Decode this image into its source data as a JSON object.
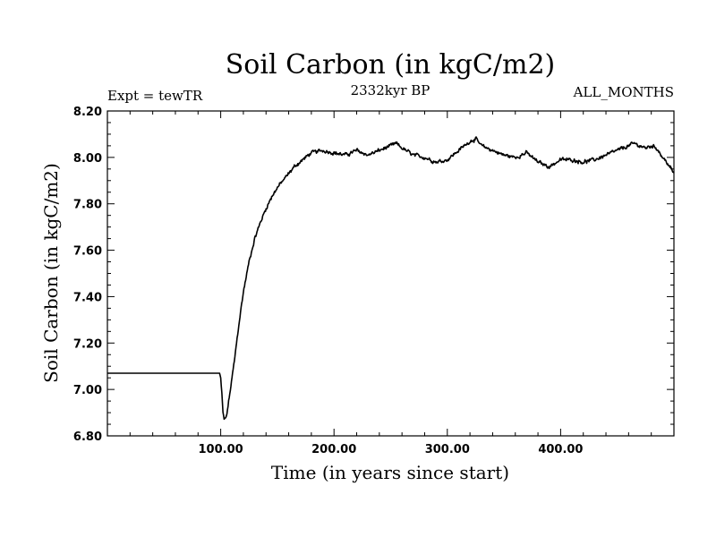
{
  "chart_data": {
    "type": "line",
    "title": "Soil Carbon (in kgC/m2)",
    "subtitle_left": "Expt = tewTR",
    "subtitle_center": "2332kyr BP",
    "subtitle_right": "ALL_MONTHS",
    "xlabel": "Time (in years since start)",
    "ylabel": "Soil Carbon (in kgC/m2)",
    "xlim": [
      0,
      500
    ],
    "ylim": [
      6.8,
      8.2
    ],
    "x_ticks": [
      100,
      200,
      300,
      400
    ],
    "x_tick_labels": [
      "100.00",
      "200.00",
      "300.00",
      "400.00"
    ],
    "y_ticks": [
      6.8,
      7.0,
      7.2,
      7.4,
      7.6,
      7.8,
      8.0,
      8.2
    ],
    "y_tick_labels": [
      "6.80",
      "7.00",
      "7.20",
      "7.40",
      "7.60",
      "7.80",
      "8.00",
      "8.20"
    ],
    "line_color": "#000000",
    "series": [
      {
        "name": "Soil Carbon",
        "x": [
          0,
          99,
          100,
          101,
          102,
          103,
          105,
          108,
          112,
          116,
          120,
          125,
          130,
          135,
          140,
          145,
          150,
          155,
          160,
          165,
          170,
          175,
          180,
          190,
          200,
          210,
          220,
          230,
          240,
          250,
          255,
          260,
          270,
          280,
          290,
          300,
          310,
          320,
          325,
          330,
          340,
          350,
          360,
          370,
          380,
          390,
          400,
          410,
          420,
          430,
          440,
          450,
          460,
          465,
          470,
          475,
          480,
          485,
          490,
          495,
          500
        ],
        "y": [
          7.07,
          7.07,
          7.05,
          6.98,
          6.9,
          6.87,
          6.88,
          6.98,
          7.12,
          7.28,
          7.42,
          7.55,
          7.65,
          7.72,
          7.78,
          7.83,
          7.87,
          7.9,
          7.93,
          7.96,
          7.98,
          8.0,
          8.02,
          8.03,
          8.02,
          8.01,
          8.03,
          8.01,
          8.03,
          8.05,
          8.06,
          8.04,
          8.01,
          8.0,
          7.98,
          7.99,
          8.03,
          8.07,
          8.08,
          8.05,
          8.03,
          8.01,
          8.0,
          8.02,
          7.98,
          7.96,
          7.99,
          7.99,
          7.98,
          7.99,
          8.01,
          8.03,
          8.05,
          8.06,
          8.05,
          8.04,
          8.05,
          8.04,
          8.0,
          7.97,
          7.93
        ]
      }
    ]
  }
}
